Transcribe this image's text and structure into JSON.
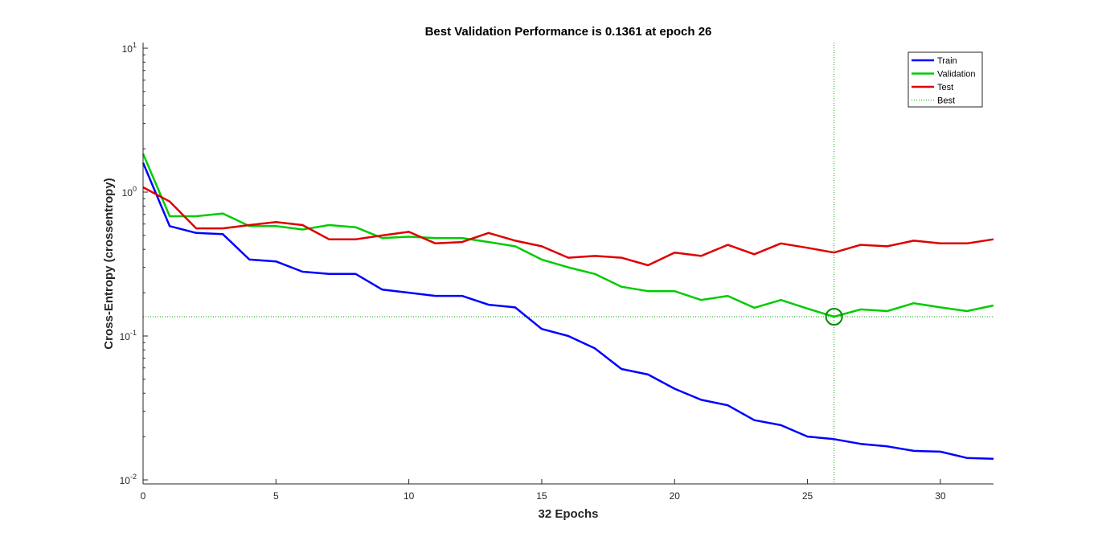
{
  "chart_data": {
    "type": "line",
    "title": "Best Validation Performance is 0.1361 at epoch 26",
    "xlabel": "32 Epochs",
    "ylabel": "Cross-Entropy  (crossentropy)",
    "xscale": "linear",
    "yscale": "log",
    "xlim": [
      0,
      32
    ],
    "ylim": [
      0.01,
      10
    ],
    "xticks": [
      0,
      5,
      10,
      15,
      20,
      25,
      30
    ],
    "yticks": [
      {
        "value": 0.01,
        "base": "10",
        "exp": "-2"
      },
      {
        "value": 0.1,
        "base": "10",
        "exp": "-1"
      },
      {
        "value": 1,
        "base": "10",
        "exp": "0"
      },
      {
        "value": 10,
        "base": "10",
        "exp": "1"
      }
    ],
    "grid": false,
    "legend_position": "top-right",
    "x": [
      0,
      1,
      2,
      3,
      4,
      5,
      6,
      7,
      8,
      9,
      10,
      11,
      12,
      13,
      14,
      15,
      16,
      17,
      18,
      19,
      20,
      21,
      22,
      23,
      24,
      25,
      26,
      27,
      28,
      29,
      30,
      31,
      32
    ],
    "series": [
      {
        "name": "Train",
        "color": "#0000ff",
        "values": [
          1.6,
          0.58,
          0.52,
          0.51,
          0.34,
          0.33,
          0.28,
          0.27,
          0.27,
          0.21,
          0.2,
          0.19,
          0.19,
          0.165,
          0.158,
          0.112,
          0.1,
          0.082,
          0.059,
          0.054,
          0.043,
          0.036,
          0.033,
          0.026,
          0.024,
          0.02,
          0.0192,
          0.0178,
          0.0171,
          0.0159,
          0.0157,
          0.0142,
          0.014
        ]
      },
      {
        "name": "Validation",
        "color": "#00cc00",
        "values": [
          1.85,
          0.68,
          0.68,
          0.71,
          0.58,
          0.58,
          0.55,
          0.59,
          0.57,
          0.48,
          0.49,
          0.48,
          0.48,
          0.45,
          0.42,
          0.34,
          0.3,
          0.27,
          0.22,
          0.205,
          0.205,
          0.178,
          0.19,
          0.157,
          0.178,
          0.155,
          0.1361,
          0.153,
          0.149,
          0.169,
          0.158,
          0.149,
          0.163
        ]
      },
      {
        "name": "Test",
        "color": "#dd0000",
        "values": [
          1.08,
          0.86,
          0.56,
          0.56,
          0.59,
          0.62,
          0.59,
          0.47,
          0.47,
          0.5,
          0.53,
          0.44,
          0.45,
          0.52,
          0.46,
          0.42,
          0.35,
          0.36,
          0.35,
          0.31,
          0.38,
          0.36,
          0.43,
          0.37,
          0.44,
          0.41,
          0.38,
          0.43,
          0.42,
          0.46,
          0.44,
          0.44,
          0.47
        ]
      }
    ],
    "best": {
      "name": "Best",
      "epoch": 26,
      "value": 0.1361,
      "color": "#00aa00"
    }
  }
}
